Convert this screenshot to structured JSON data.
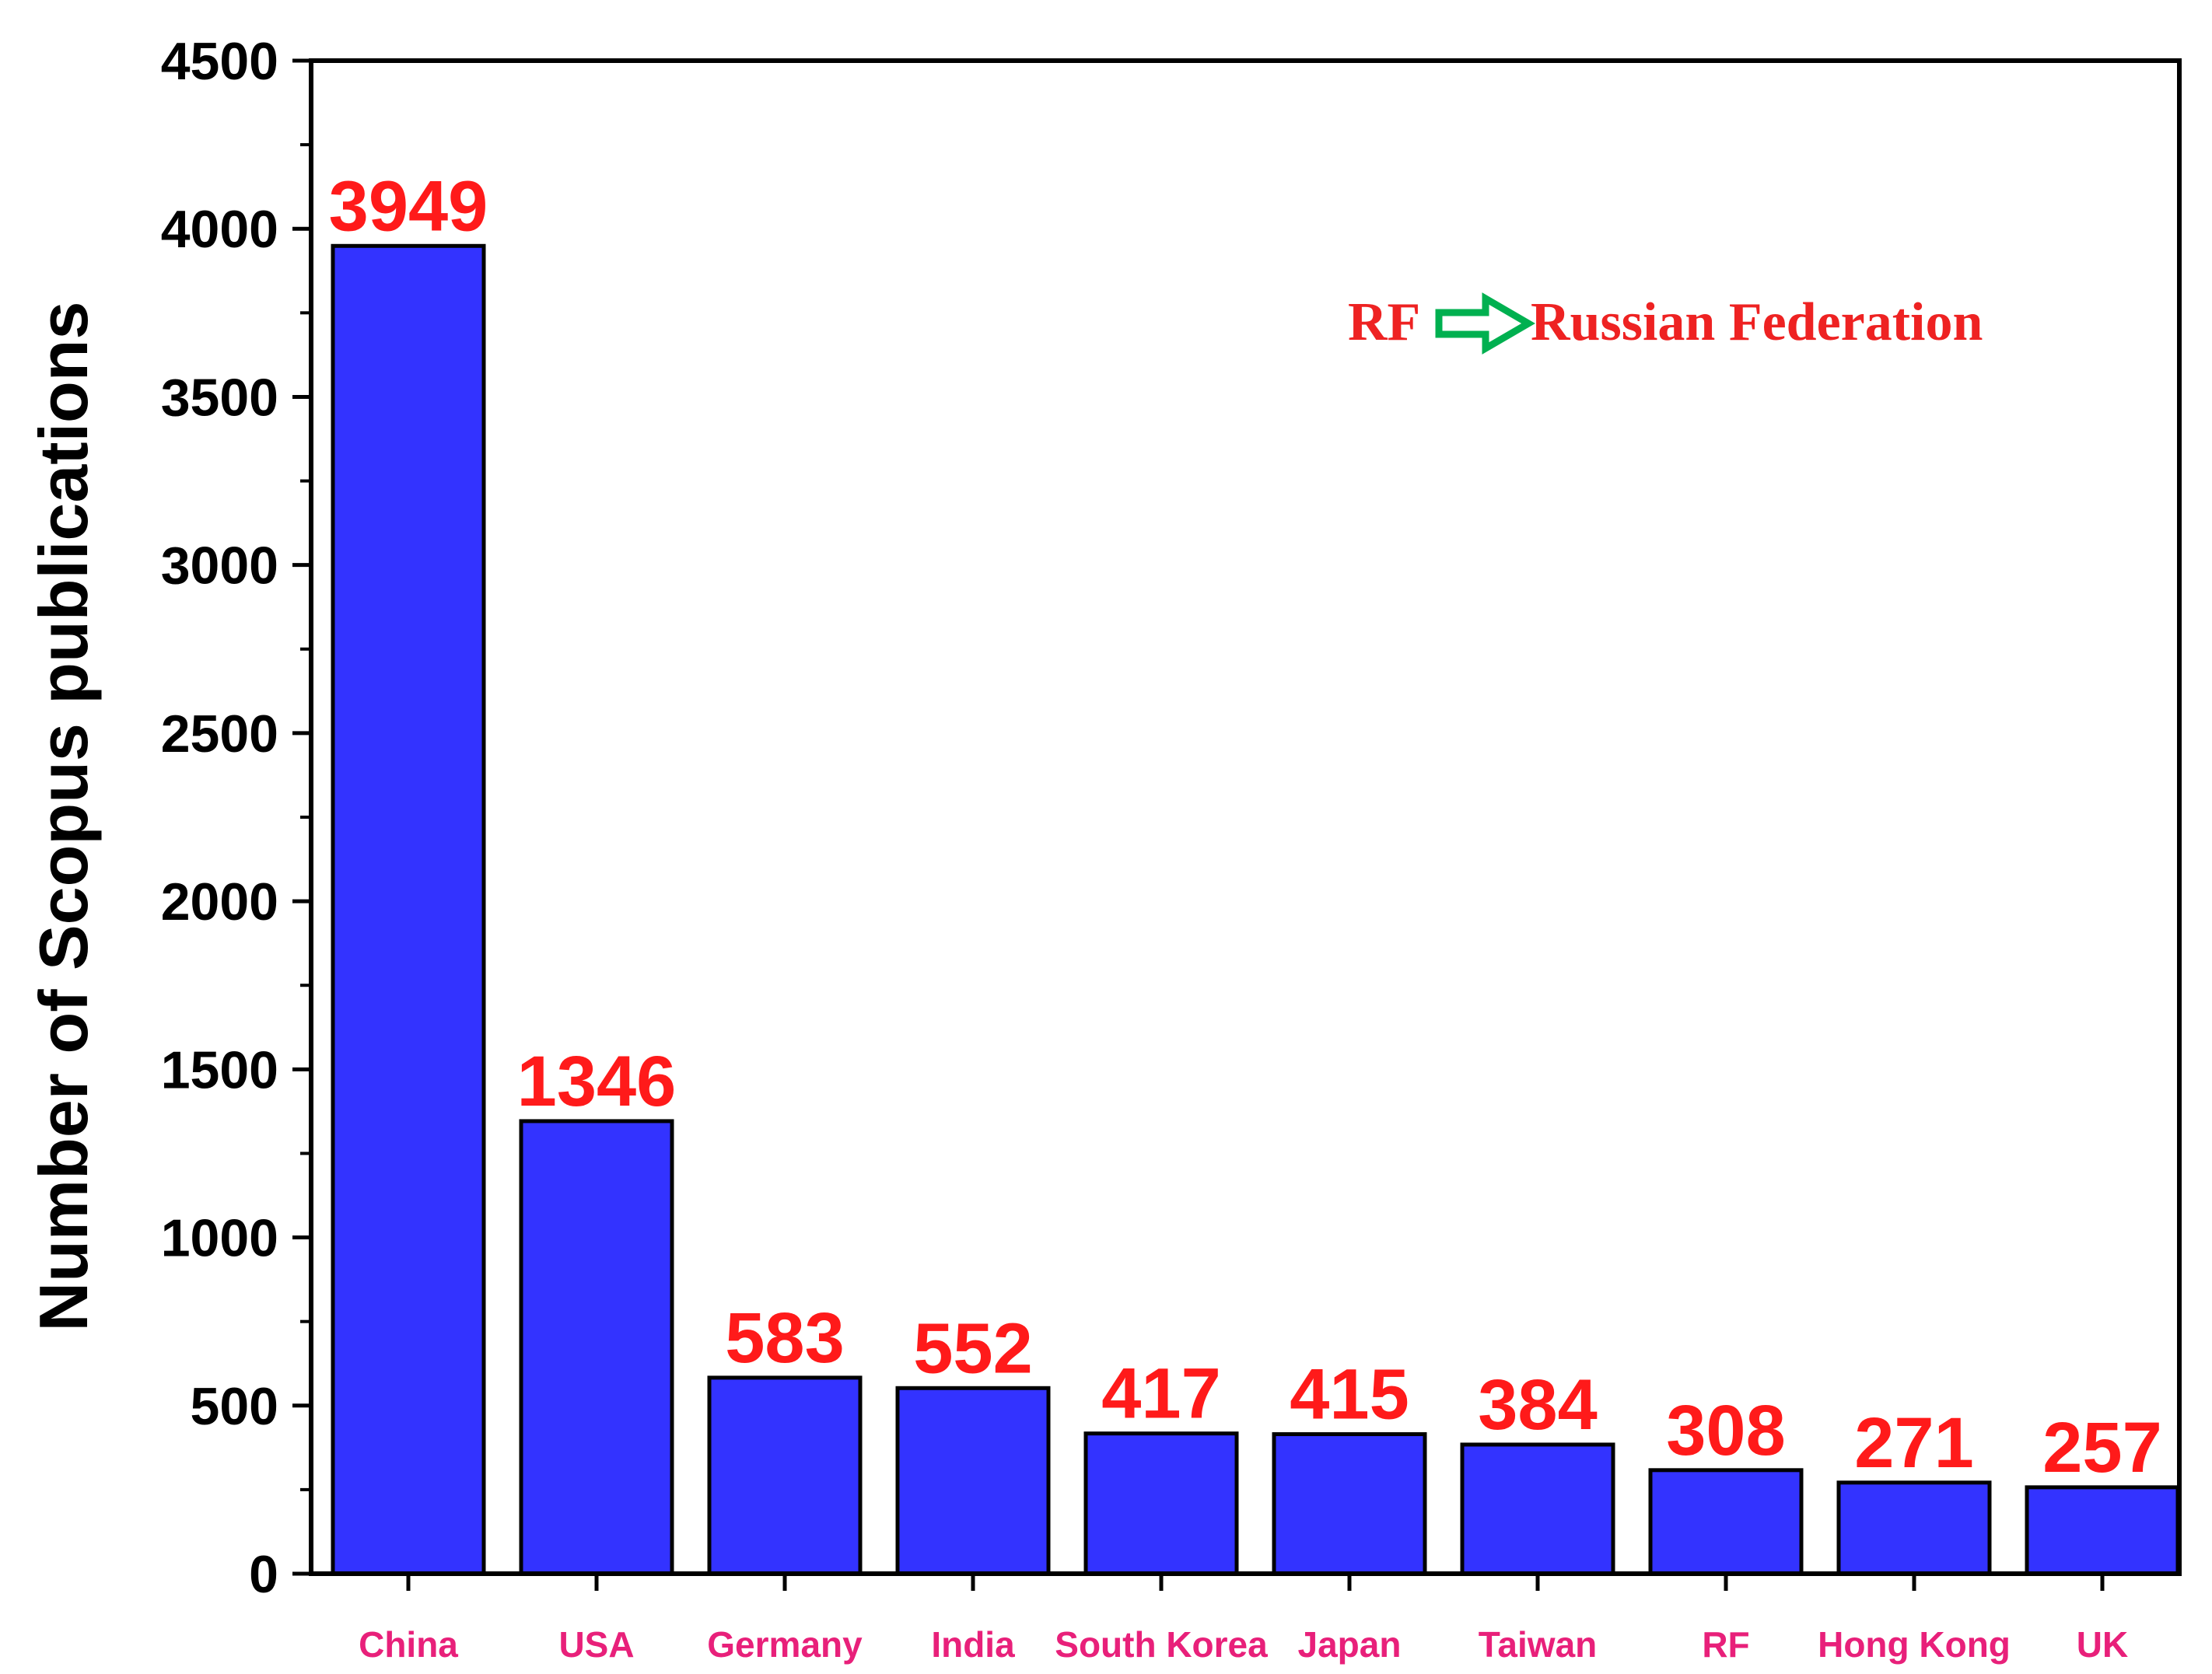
{
  "chart_data": {
    "type": "bar",
    "categories": [
      "China",
      "USA",
      "Germany",
      "India",
      "South Korea",
      "Japan",
      "Taiwan",
      "RF",
      "Hong Kong",
      "UK"
    ],
    "values": [
      3949,
      1346,
      583,
      552,
      417,
      415,
      384,
      308,
      271,
      257
    ],
    "data_labels": [
      "3949",
      "1346",
      "583",
      "552",
      "417",
      "415",
      "384",
      "308",
      "271",
      "257"
    ],
    "xlabel": "",
    "ylabel": "Number of Scopus publications",
    "ylim": [
      0,
      4500
    ],
    "yticks": [
      0,
      500,
      1000,
      1500,
      2000,
      2500,
      3000,
      3500,
      4000,
      4500
    ],
    "ytick_labels": [
      "0",
      "500",
      "1000",
      "1500",
      "2000",
      "2500",
      "3000",
      "3500",
      "4000",
      "4500"
    ],
    "grid": false,
    "annotation": {
      "left": "RF",
      "right": "Russian Federation",
      "arrow_icon": "right-arrow-icon"
    },
    "colors": {
      "bar_fill": "#3333ff",
      "bar_stroke": "#000000",
      "data_label": "#ff1a1a",
      "category_label": "#e8207a",
      "annotation_text": "#ee2222",
      "annotation_arrow": "#00b050"
    }
  }
}
